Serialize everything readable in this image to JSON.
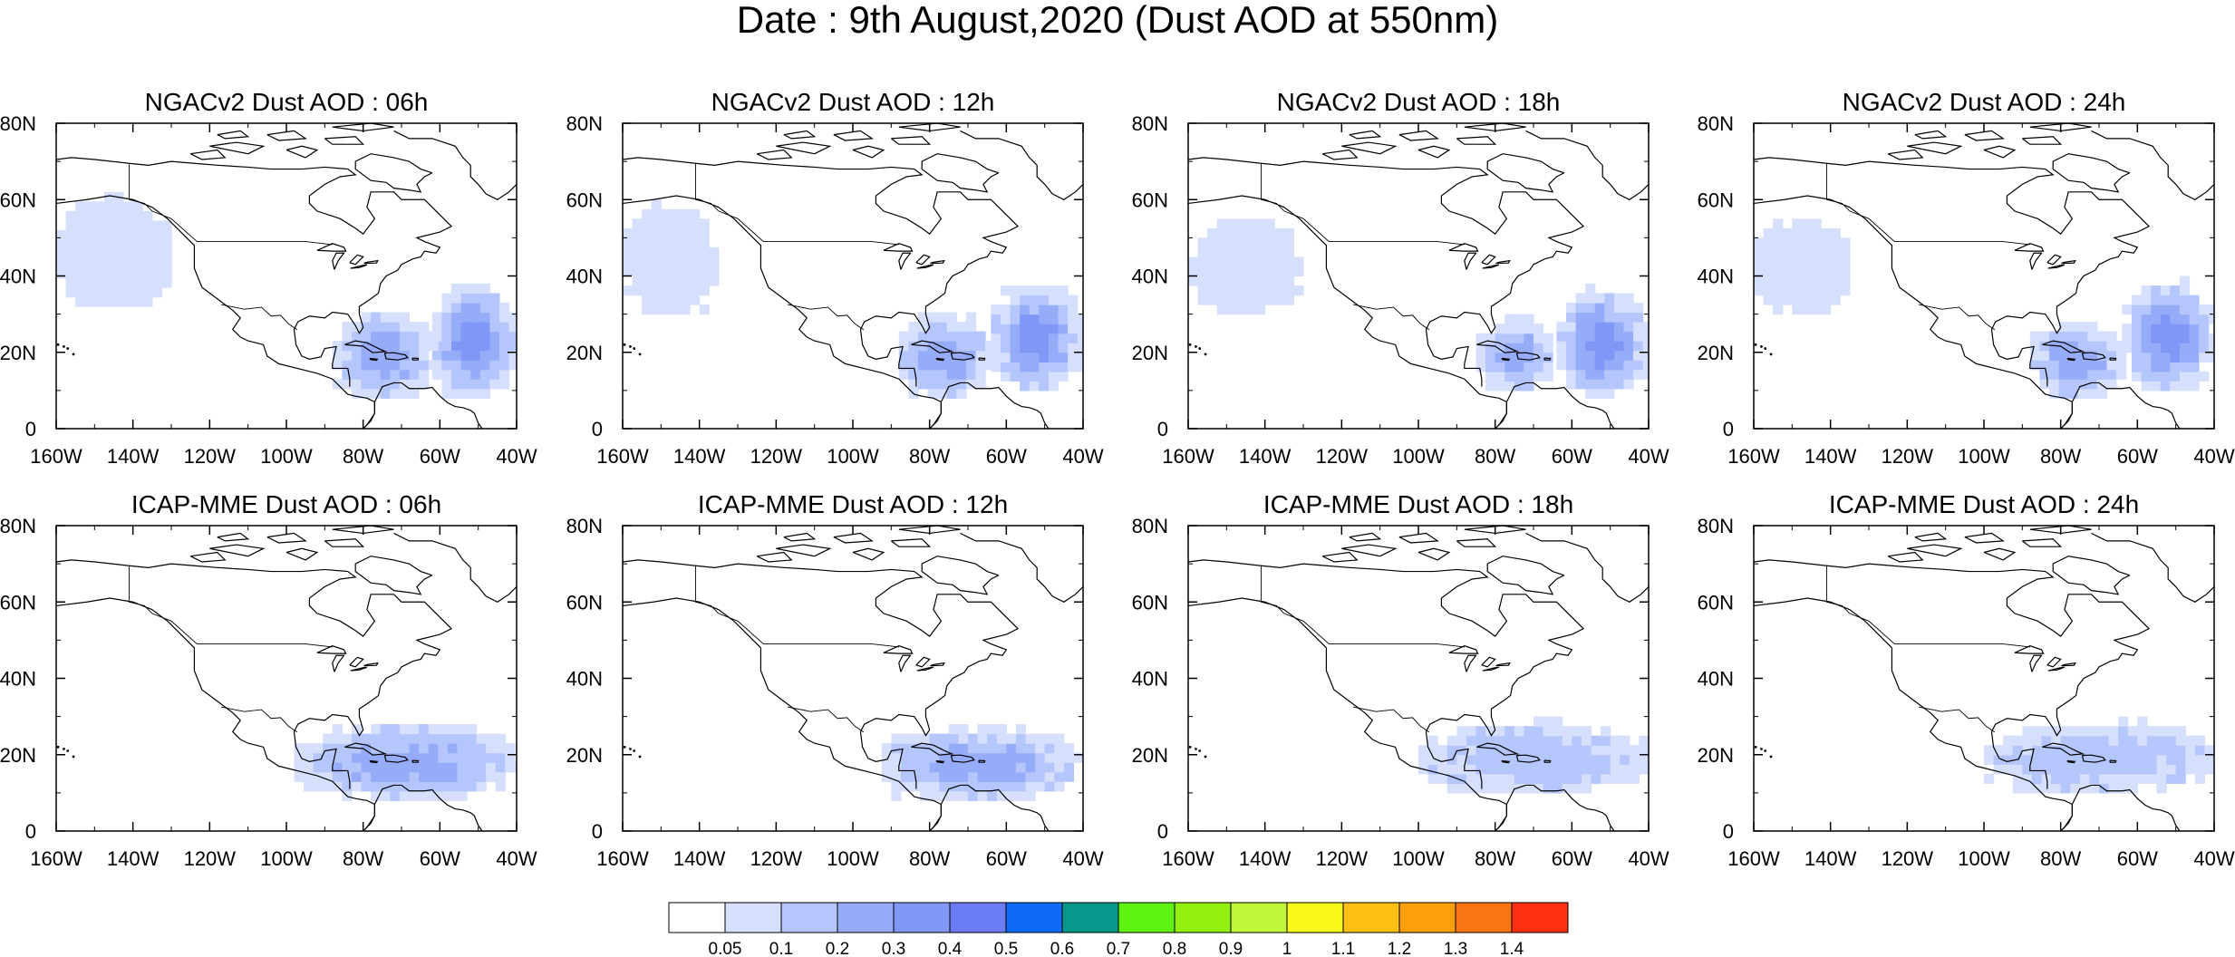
{
  "title": "Date : 9th August,2020 (Dust AOD at 550nm)",
  "panels": [
    {
      "title": "NGACv2 Dust AOD : 06h",
      "model": "NGACv2",
      "hour": "06h"
    },
    {
      "title": "NGACv2 Dust AOD : 12h",
      "model": "NGACv2",
      "hour": "12h"
    },
    {
      "title": "NGACv2 Dust AOD : 18h",
      "model": "NGACv2",
      "hour": "18h"
    },
    {
      "title": "NGACv2 Dust AOD : 24h",
      "model": "NGACv2",
      "hour": "24h"
    },
    {
      "title": "ICAP-MME Dust AOD : 06h",
      "model": "ICAP-MME",
      "hour": "06h"
    },
    {
      "title": "ICAP-MME Dust AOD : 12h",
      "model": "ICAP-MME",
      "hour": "12h"
    },
    {
      "title": "ICAP-MME Dust AOD : 18h",
      "model": "ICAP-MME",
      "hour": "18h"
    },
    {
      "title": "ICAP-MME Dust AOD : 24h",
      "model": "ICAP-MME",
      "hour": "24h"
    }
  ],
  "map": {
    "lon_range": [
      -160,
      -40
    ],
    "lat_range": [
      0,
      80
    ],
    "lon_ticks": [
      -160,
      -140,
      -120,
      -100,
      -80,
      -60,
      -40
    ],
    "lon_tick_labels": [
      "160W",
      "140W",
      "120W",
      "100W",
      "80W",
      "60W",
      "40W"
    ],
    "lat_ticks": [
      0,
      20,
      40,
      60,
      80
    ],
    "lat_tick_labels": [
      "0",
      "20N",
      "40N",
      "60N",
      "80N"
    ]
  },
  "colorbar": {
    "levels": [
      "0.05",
      "0.1",
      "0.2",
      "0.3",
      "0.4",
      "0.5",
      "0.6",
      "0.7",
      "0.8",
      "0.9",
      "1",
      "1.1",
      "1.2",
      "1.3",
      "1.4"
    ],
    "colors": [
      "#ffffff",
      "#d6dffc",
      "#b4c6fb",
      "#97acf8",
      "#8197f6",
      "#6a7df4",
      "#0f6bf5",
      "#09968c",
      "#5ef212",
      "#93ef10",
      "#c0f53a",
      "#f7f71a",
      "#fbc011",
      "#fc9f0b",
      "#f87511",
      "#fe2f12"
    ]
  },
  "chart_data": {
    "type": "heatmap",
    "title": "Date : 9th August,2020 (Dust AOD at 550nm)",
    "variable": "Dust AOD at 550nm",
    "xlabel": "",
    "ylabel": "",
    "x_range": [
      -160,
      -40
    ],
    "y_range": [
      0,
      80
    ],
    "panels": [
      {
        "title": "NGACv2 Dust AOD : 06h",
        "plumes": [
          {
            "lon": [
              -62,
              -40
            ],
            "lat": [
              8,
              38
            ],
            "aod": "0.2-0.4"
          },
          {
            "lon": [
              -88,
              -62
            ],
            "lat": [
              8,
              30
            ],
            "aod": "0.1-0.3"
          },
          {
            "lon": [
              -160,
              -130
            ],
            "lat": [
              32,
              60
            ],
            "aod": "0.05-0.1"
          }
        ]
      },
      {
        "title": "NGACv2 Dust AOD : 12h",
        "plumes": [
          {
            "lon": [
              -64,
              -40
            ],
            "lat": [
              10,
              38
            ],
            "aod": "0.2-0.4"
          },
          {
            "lon": [
              -88,
              -64
            ],
            "lat": [
              8,
              30
            ],
            "aod": "0.1-0.3"
          },
          {
            "lon": [
              -160,
              -135
            ],
            "lat": [
              30,
              58
            ],
            "aod": "0.05-0.1"
          }
        ]
      },
      {
        "title": "NGACv2 Dust AOD : 18h",
        "plumes": [
          {
            "lon": [
              -64,
              -40
            ],
            "lat": [
              8,
              36
            ],
            "aod": "0.2-0.4"
          },
          {
            "lon": [
              -85,
              -64
            ],
            "lat": [
              10,
              28
            ],
            "aod": "0.1-0.3"
          },
          {
            "lon": [
              -160,
              -130
            ],
            "lat": [
              30,
              55
            ],
            "aod": "0.05-0.1"
          }
        ]
      },
      {
        "title": "NGACv2 Dust AOD : 24h",
        "plumes": [
          {
            "lon": [
              -64,
              -40
            ],
            "lat": [
              10,
              38
            ],
            "aod": "0.2-0.4"
          },
          {
            "lon": [
              -88,
              -64
            ],
            "lat": [
              8,
              28
            ],
            "aod": "0.1-0.3"
          },
          {
            "lon": [
              -160,
              -135
            ],
            "lat": [
              30,
              55
            ],
            "aod": "0.05-0.1"
          }
        ]
      },
      {
        "title": "ICAP-MME Dust AOD : 06h",
        "plumes": [
          {
            "lon": [
              -98,
              -40
            ],
            "lat": [
              8,
              28
            ],
            "aod": "0.1-0.3"
          }
        ]
      },
      {
        "title": "ICAP-MME Dust AOD : 12h",
        "plumes": [
          {
            "lon": [
              -95,
              -40
            ],
            "lat": [
              8,
              27
            ],
            "aod": "0.1-0.3"
          }
        ]
      },
      {
        "title": "ICAP-MME Dust AOD : 18h",
        "plumes": [
          {
            "lon": [
              -100,
              -40
            ],
            "lat": [
              10,
              28
            ],
            "aod": "0.1-0.2"
          }
        ]
      },
      {
        "title": "ICAP-MME Dust AOD : 24h",
        "plumes": [
          {
            "lon": [
              -100,
              -40
            ],
            "lat": [
              10,
              28
            ],
            "aod": "0.1-0.2"
          }
        ]
      }
    ]
  }
}
